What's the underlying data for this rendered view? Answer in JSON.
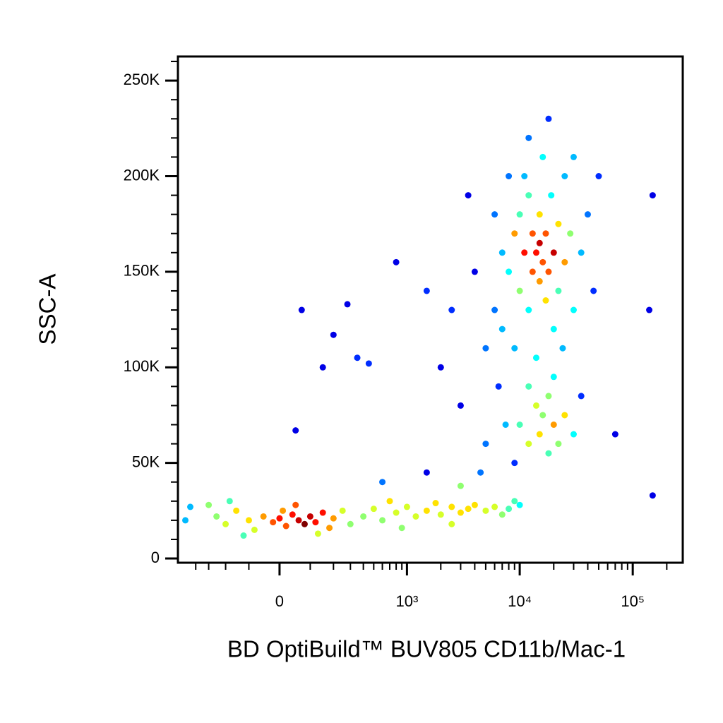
{
  "chart_data": {
    "type": "scatter",
    "xlabel": "BD OptiBuild™ BUV805 CD11b/Mac-1",
    "ylabel": "SSC-A",
    "xscale": "biexponential",
    "xlim": [
      -585,
      277000
    ],
    "ylim": [
      -2200,
      262600
    ],
    "xticks": [
      0,
      {
        "value": 1000,
        "label": "10³"
      },
      {
        "value": 10000,
        "label": "10⁴"
      },
      {
        "value": 100000,
        "label": "10⁵"
      }
    ],
    "xminorticks": [
      -400,
      -300,
      -200,
      -100,
      100,
      200,
      300,
      400,
      500,
      600,
      700,
      800,
      900,
      2000,
      3000,
      4000,
      5000,
      6000,
      7000,
      8000,
      9000,
      20000,
      30000,
      40000,
      50000,
      60000,
      70000,
      80000,
      90000,
      200000
    ],
    "yticks": [
      0,
      {
        "value": 50000,
        "label": "50K"
      },
      {
        "value": 100000,
        "label": "100K"
      },
      {
        "value": 150000,
        "label": "150K"
      },
      {
        "value": 200000,
        "label": "200K"
      },
      {
        "value": 250000,
        "label": "250K"
      }
    ],
    "yminorticks": [
      10000,
      20000,
      30000,
      40000,
      60000,
      70000,
      80000,
      90000,
      110000,
      120000,
      130000,
      140000,
      160000,
      170000,
      180000,
      190000,
      210000,
      220000,
      230000,
      240000,
      260000
    ],
    "colormap": "jet",
    "x": [
      -250,
      -200,
      -150,
      -100,
      -80,
      -50,
      -20,
      0,
      20,
      40,
      60,
      80,
      100,
      120,
      150,
      180,
      200,
      250,
      -300,
      -120,
      50,
      300,
      -180,
      130,
      10,
      -500,
      -450,
      50,
      70,
      150,
      200,
      280,
      350,
      450,
      400,
      500,
      600,
      700,
      800,
      1000,
      1200,
      1500,
      1800,
      2000,
      2500,
      3000,
      3500,
      4000,
      5000,
      6000,
      7000,
      8000,
      9000,
      10000,
      600,
      1500,
      3000,
      900,
      2500,
      2000,
      2500,
      3000,
      4000,
      5000,
      5000,
      6000,
      6500,
      7000,
      7500,
      1500,
      800,
      3500,
      4500,
      8000,
      8000,
      9000,
      10000,
      10000,
      11000,
      12000,
      12000,
      13000,
      13000,
      14000,
      15000,
      15000,
      15000,
      16000,
      17000,
      17000,
      18000,
      19000,
      20000,
      20000,
      22000,
      22000,
      25000,
      25000,
      28000,
      30000,
      30000,
      35000,
      40000,
      45000,
      12000,
      18000,
      9000,
      14000,
      16000,
      11000,
      24000,
      50000,
      7000,
      6000,
      10000,
      12000,
      14000,
      15000,
      16000,
      18000,
      18000,
      20000,
      22000,
      25000,
      12000,
      30000,
      9000,
      20000,
      35000,
      150000,
      140000,
      150000,
      70000
    ],
    "values": [
      22000,
      18000,
      25000,
      20000,
      15000,
      22000,
      19000,
      21000,
      17000,
      23000,
      20000,
      18000,
      22000,
      19000,
      24000,
      16000,
      21000,
      25000,
      28000,
      12000,
      28000,
      18000,
      30000,
      13000,
      25000,
      20000,
      27000,
      67000,
      130000,
      100000,
      117000,
      133000,
      105000,
      102000,
      22000,
      26000,
      20000,
      30000,
      24000,
      27000,
      22000,
      25000,
      29000,
      23000,
      27000,
      24000,
      26000,
      28000,
      25000,
      27000,
      23000,
      26000,
      30000,
      28000,
      40000,
      45000,
      38000,
      16000,
      18000,
      100000,
      130000,
      80000,
      150000,
      110000,
      60000,
      180000,
      90000,
      120000,
      70000,
      140000,
      155000,
      190000,
      45000,
      200000,
      150000,
      170000,
      140000,
      180000,
      160000,
      130000,
      190000,
      150000,
      170000,
      160000,
      145000,
      165000,
      180000,
      155000,
      170000,
      135000,
      150000,
      190000,
      160000,
      120000,
      175000,
      140000,
      155000,
      200000,
      170000,
      130000,
      210000,
      160000,
      180000,
      140000,
      220000,
      230000,
      110000,
      105000,
      210000,
      200000,
      110000,
      200000,
      160000,
      130000,
      70000,
      60000,
      80000,
      65000,
      75000,
      55000,
      85000,
      70000,
      60000,
      75000,
      90000,
      65000,
      50000,
      95000,
      85000,
      190000,
      130000,
      33000,
      65000
    ]
  }
}
